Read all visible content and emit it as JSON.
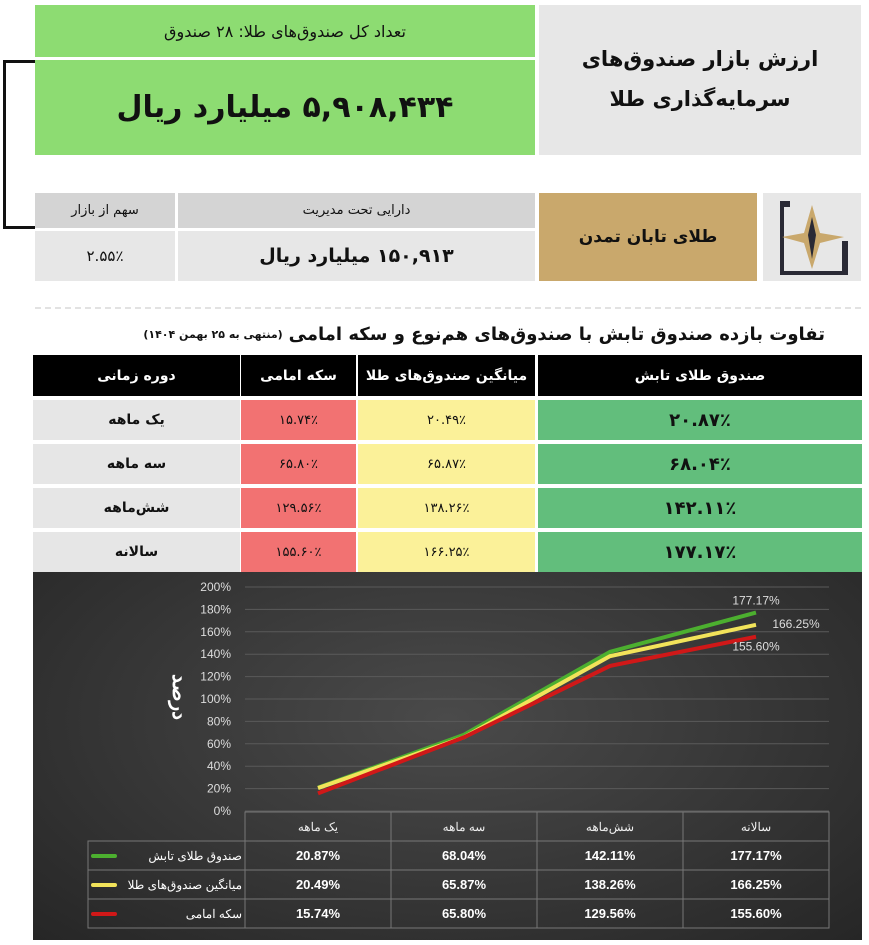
{
  "summary": {
    "total_funds": "تعداد کل صندوق‌های طلا: ۲۸ صندوق",
    "market_value": "۵,۹۰۸,۴۳۴  میلیارد ریال",
    "title_line1": "ارزش بازار صندوق‌های",
    "title_line2": "سرمایه‌گذاری طلا"
  },
  "fund": {
    "share_label": "سهم از بازار",
    "share_value": "۲.۵۵٪",
    "aum_label": "دارایی تحت مدیریت",
    "aum_value": "۱۵۰,۹۱۳  میلیارد ریال",
    "name": "طلای تابان تمدن"
  },
  "table": {
    "title": "تفاوت بازده صندوق تابش با صندوق‌های هم‌نوع و سکه امامی",
    "subtitle": "(منتهی به ۲۵ بهمن ۱۴۰۴)",
    "headers": [
      "دوره زمانی",
      "سکه امامی",
      "میانگین صندوق‌های طلا",
      "صندوق طلای تابش"
    ],
    "rows": [
      [
        "یک ماهه",
        "۱۵.۷۴٪",
        "۲۰.۴۹٪",
        "۲۰.۸۷٪"
      ],
      [
        "سه ماهه",
        "۶۵.۸۰٪",
        "۶۵.۸۷٪",
        "۶۸.۰۴٪"
      ],
      [
        "شش‌ماهه",
        "۱۲۹.۵۶٪",
        "۱۳۸.۲۶٪",
        "۱۴۲.۱۱٪"
      ],
      [
        "سالانه",
        "۱۵۵.۶۰٪",
        "۱۶۶.۲۵٪",
        "۱۷۷.۱۷٪"
      ]
    ]
  },
  "chart_data": {
    "type": "line",
    "ylabel": "درصد",
    "categories": [
      "یک ماهه",
      "سه ماهه",
      "شش‌ماهه",
      "سالانه"
    ],
    "ylim": [
      0,
      200
    ],
    "yticks": [
      "0%",
      "20%",
      "40%",
      "60%",
      "80%",
      "100%",
      "120%",
      "140%",
      "160%",
      "180%",
      "200%"
    ],
    "series": [
      {
        "name": "صندوق طلای تابش",
        "color": "#4caf2f",
        "values": [
          20.87,
          68.04,
          142.11,
          177.17
        ],
        "labels": [
          "20.87%",
          "68.04%",
          "142.11%",
          "177.17%"
        ]
      },
      {
        "name": "میانگین صندوق‌های طلا",
        "color": "#f2e35a",
        "values": [
          20.49,
          65.87,
          138.26,
          166.25
        ],
        "labels": [
          "20.49%",
          "65.87%",
          "138.26%",
          "166.25%"
        ]
      },
      {
        "name": "سکه امامی",
        "color": "#d01818",
        "values": [
          15.74,
          65.8,
          129.56,
          155.6
        ],
        "labels": [
          "15.74%",
          "65.80%",
          "129.56%",
          "155.60%"
        ]
      }
    ],
    "end_labels": [
      "177.17%",
      "166.25%",
      "155.60%"
    ]
  }
}
